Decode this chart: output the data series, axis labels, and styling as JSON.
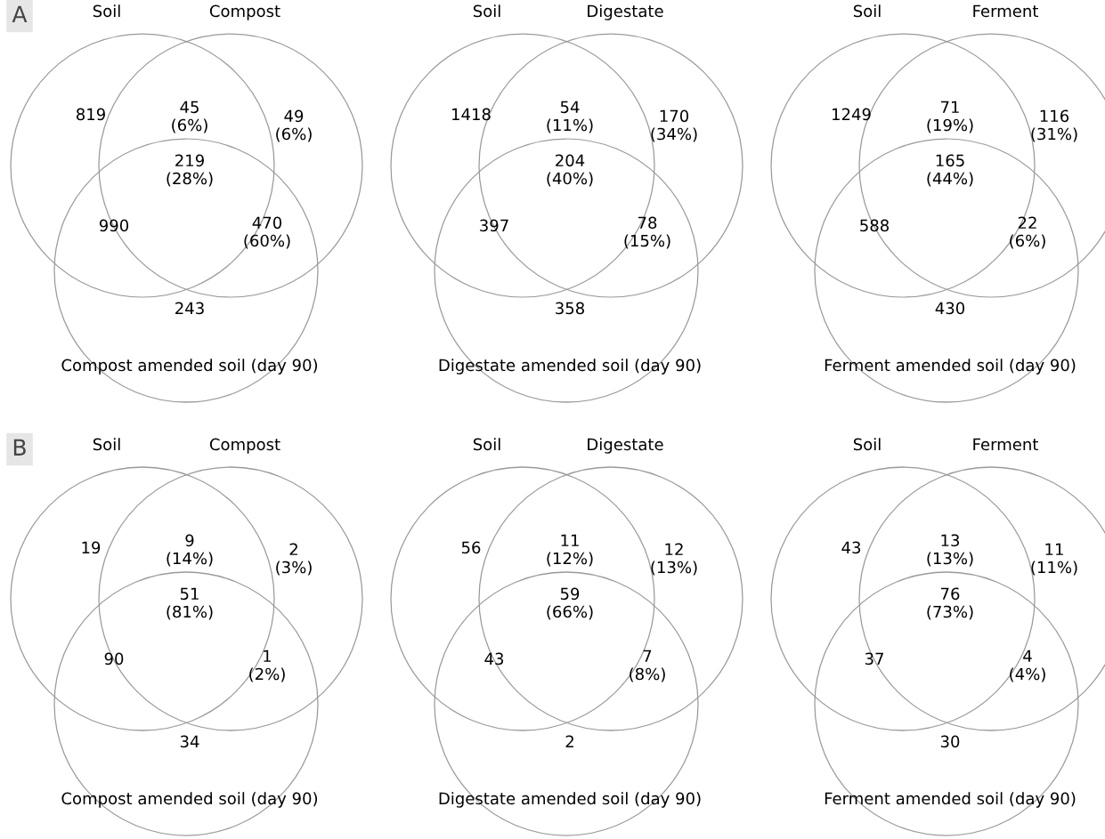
{
  "chart_data": [
    {
      "type": "other",
      "title": "A",
      "annotations": [
        "Soil",
        "Compost"
      ],
      "xlabel": "Compost amended soil (day 90)",
      "color": "#9a9a9a",
      "categories": [
        null,
        null,
        null,
        null,
        null,
        null,
        null
      ],
      "values": [
        819,
        45,
        49,
        219,
        990,
        470,
        243
      ],
      "value_labels": [
        "819",
        "45\n(6%)",
        "49\n(6%)",
        "219\n(28%)",
        "990",
        "470\n(60%)",
        "243"
      ]
    },
    {
      "type": "other",
      "annotations": [
        "Soil",
        "Digestate"
      ],
      "xlabel": "Digestate amended soil (day 90)",
      "color": "#9a9a9a",
      "categories": [
        null,
        null,
        null,
        null,
        null,
        null,
        null
      ],
      "values": [
        1418,
        54,
        170,
        204,
        397,
        78,
        358
      ],
      "value_labels": [
        "1418",
        "54\n(11%)",
        "170\n(34%)",
        "204\n(40%)",
        "397",
        "78\n(15%)",
        "358"
      ]
    },
    {
      "type": "other",
      "annotations": [
        "Soil",
        "Ferment"
      ],
      "xlabel": "Ferment amended soil (day 90)",
      "color": "#9a9a9a",
      "categories": [
        null,
        null,
        null,
        null,
        null,
        null,
        null
      ],
      "values": [
        1249,
        71,
        116,
        165,
        588,
        22,
        430
      ],
      "value_labels": [
        "1249",
        "71\n(19%)",
        "116\n(31%)",
        "165\n(44%)",
        "588",
        "22\n(6%)",
        "430"
      ]
    },
    {
      "type": "other",
      "title": "B",
      "annotations": [
        "Soil",
        "Compost"
      ],
      "xlabel": "Compost amended soil (day 90)",
      "color": "#9a9a9a",
      "categories": [
        null,
        null,
        null,
        null,
        null,
        null,
        null
      ],
      "values": [
        19,
        9,
        2,
        51,
        90,
        1,
        34
      ],
      "value_labels": [
        "19",
        "9\n(14%)",
        "2\n(3%)",
        "51\n(81%)",
        "90",
        "1\n(2%)",
        "34"
      ]
    },
    {
      "type": "other",
      "annotations": [
        "Soil",
        "Digestate"
      ],
      "xlabel": "Digestate amended soil (day 90)",
      "color": "#9a9a9a",
      "categories": [
        null,
        null,
        null,
        null,
        null,
        null,
        null
      ],
      "values": [
        56,
        11,
        12,
        59,
        43,
        7,
        2
      ],
      "value_labels": [
        "56",
        "11\n(12%)",
        "12\n(13%)",
        "59\n(66%)",
        "43",
        "7\n(8%)",
        "2"
      ]
    },
    {
      "type": "other",
      "annotations": [
        "Soil",
        "Ferment"
      ],
      "xlabel": "Ferment amended soil (day 90)",
      "color": "#9a9a9a",
      "categories": [
        null,
        null,
        null,
        null,
        null,
        null,
        null
      ],
      "values": [
        43,
        13,
        11,
        76,
        37,
        4,
        30
      ],
      "value_labels": [
        "43",
        "13\n(13%)",
        "11\n(11%)",
        "76\n(73%)",
        "37",
        "4\n(4%)",
        "30"
      ]
    }
  ]
}
